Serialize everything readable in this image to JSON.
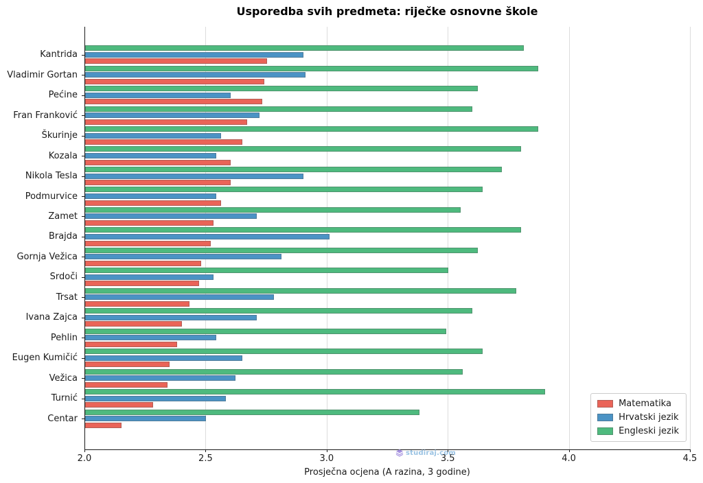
{
  "title": "Usporedba svih predmeta: riječke osnovne škole",
  "watermark": {
    "text": "studiraj.com",
    "logo_color": "#9c86dd",
    "text_color": "#8fbce0"
  },
  "colors": {
    "matematika": "#ea6458",
    "hrvatski": "#4b93c5",
    "engleski": "#4eba7e",
    "grid": "#dcdcdc",
    "spine": "#1a1a1a"
  },
  "chart_data": {
    "type": "bar",
    "orientation": "horizontal",
    "title": "Usporedba svih predmeta: riječke osnovne škole",
    "xlabel": "Prosječna ocjena (A razina, 3 godine)",
    "ylabel": "",
    "xlim": [
      2.0,
      4.5
    ],
    "xticks": [
      2.0,
      2.5,
      3.0,
      3.5,
      4.0,
      4.5
    ],
    "grid": "vertical-only",
    "legend_position": "lower right",
    "bar_display_order_top_to_bottom": [
      "Engleski jezik",
      "Hrvatski jezik",
      "Matematika"
    ],
    "categories": [
      "Kantrida",
      "Vladimir Gortan",
      "Pećine",
      "Fran Franković",
      "Škurinje",
      "Kozala",
      "Nikola Tesla",
      "Podmurvice",
      "Zamet",
      "Brajda",
      "Gornja Vežica",
      "Srdoči",
      "Trsat",
      "Ivana Zajca",
      "Pehlin",
      "Eugen Kumičić",
      "Vežica",
      "Turnić",
      "Centar"
    ],
    "series": [
      {
        "name": "Matematika",
        "color": "#ea6458",
        "values": [
          2.75,
          2.74,
          2.73,
          2.67,
          2.65,
          2.6,
          2.6,
          2.56,
          2.53,
          2.52,
          2.48,
          2.47,
          2.43,
          2.4,
          2.38,
          2.35,
          2.34,
          2.28,
          2.15
        ]
      },
      {
        "name": "Hrvatski jezik",
        "color": "#4b93c5",
        "values": [
          2.9,
          2.91,
          2.6,
          2.72,
          2.56,
          2.54,
          2.9,
          2.54,
          2.71,
          3.01,
          2.81,
          2.53,
          2.78,
          2.71,
          2.54,
          2.65,
          2.62,
          2.58,
          2.5
        ]
      },
      {
        "name": "Engleski jezik",
        "color": "#4eba7e",
        "values": [
          3.81,
          3.87,
          3.62,
          3.6,
          3.87,
          3.8,
          3.72,
          3.64,
          3.55,
          3.8,
          3.62,
          3.5,
          3.78,
          3.6,
          3.49,
          3.64,
          3.56,
          3.9,
          3.38
        ]
      }
    ]
  }
}
